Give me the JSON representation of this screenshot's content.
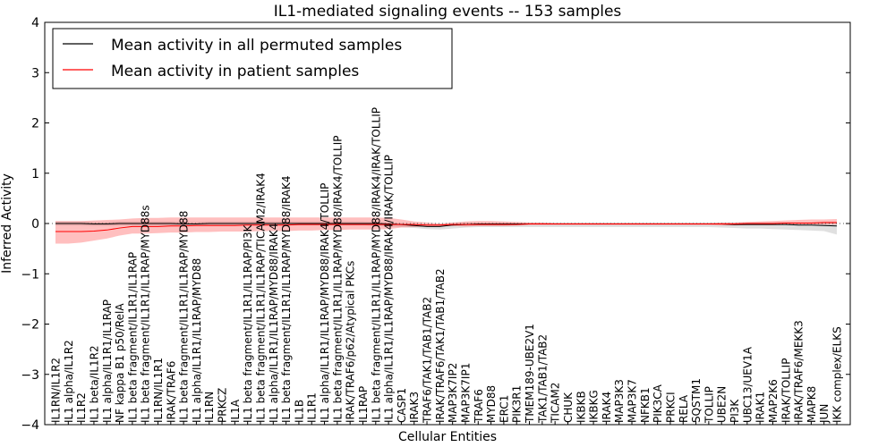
{
  "chart_data": {
    "type": "line",
    "title": "IL1-mediated signaling events -- 153 samples",
    "xlabel": "Cellular Entities",
    "ylabel": "Inferred Activity",
    "ylim": [
      -4,
      4
    ],
    "yticks": [
      "−4",
      "−3",
      "−2",
      "−1",
      "0",
      "1",
      "2",
      "3",
      "4"
    ],
    "legend": {
      "placement": "top-left",
      "entries": [
        {
          "label": "Mean activity in all permuted samples",
          "color": "#000000"
        },
        {
          "label": "Mean activity in patient samples",
          "color": "#ff0000"
        }
      ]
    },
    "categories": [
      "IL1RN/IL1R2",
      "IL1 alpha/IL1R2",
      "IL1R2",
      "IL1 beta/IL1R2",
      "IL1 alpha/IL1R1/IL1RAP",
      "NF kappa B1 p50/RelA",
      "IL1 beta fragment/IL1R1/IL1RAP",
      "IL1 beta fragment/IL1R1/IL1RAP/MYD88s",
      "IL1RN/IL1R1",
      "IRAK/TRAF6",
      "IL1 beta fragment/IL1R1/IL1RAP/MYD88",
      "IL1 alpha/IL1R1/IL1RAP/MYD88",
      "IL1RN",
      "PRKCZ",
      "IL1A",
      "IL1 beta fragment/IL1R1/IL1RAP/PI3K",
      "IL1 beta fragment/IL1R1/IL1RAP/TICAM2/IRAK4",
      "IL1 alpha/IL1R1/IL1RAP/MYD88/IRAK4",
      "IL1 beta fragment/IL1R1/IL1RAP/MYD88/IRAK4",
      "IL1B",
      "IL1R1",
      "IL1 alpha/IL1R1/IL1RAP/MYD88/IRAK4/TOLLIP",
      "IL1 beta fragment/IL1R1/IL1RAP/MYD88/IRAK4/TOLLIP",
      "IRAK/TRAF6/p62/Atypical PKCs",
      "IL1RAP",
      "IL1 beta fragment/IL1R1/IL1RAP/MYD88/IRAK4/IRAK/TOLLIP",
      "IL1 alpha/IL1R1/IL1RAP/MYD88/IRAK4/IRAK/TOLLIP",
      "CASP1",
      "IRAK3",
      "TRAF6/TAK1/TAB1/TAB2",
      "IRAK/TRAF6/TAK1/TAB1/TAB2",
      "MAP3K7IP2",
      "MAP3K7IP1",
      "TRAF6",
      "MYD88",
      "ERC1",
      "PIK3R1",
      "TMEM189-UBE2V1",
      "TAK1/TAB1/TAB2",
      "TICAM2",
      "CHUK",
      "IKBKB",
      "IKBKG",
      "IRAK4",
      "MAP3K3",
      "MAP3K7",
      "NFKB1",
      "PIK3CA",
      "PRKCI",
      "RELA",
      "SQSTM1",
      "TOLLIP",
      "UBE2N",
      "PI3K",
      "UBC13/UEV1A",
      "IRAK1",
      "MAP2K6",
      "IRAK/TOLLIP",
      "IRAK/TRAF6/MEKK3",
      "MAPK8",
      "JUN",
      "IKK complex/ELKS"
    ],
    "series": [
      {
        "name": "Mean activity in patient samples",
        "color": "#ff0000",
        "values": [
          -0.16,
          -0.16,
          -0.16,
          -0.15,
          -0.13,
          -0.09,
          -0.06,
          -0.06,
          -0.06,
          -0.05,
          -0.05,
          -0.04,
          -0.04,
          -0.04,
          -0.04,
          -0.03,
          -0.03,
          -0.03,
          -0.03,
          -0.02,
          -0.02,
          -0.02,
          -0.02,
          -0.02,
          -0.02,
          -0.02,
          -0.02,
          -0.02,
          -0.02,
          -0.03,
          -0.03,
          -0.02,
          -0.02,
          -0.02,
          -0.02,
          -0.02,
          -0.02,
          -0.01,
          -0.01,
          -0.01,
          -0.01,
          -0.01,
          -0.01,
          -0.01,
          -0.01,
          -0.01,
          -0.01,
          -0.01,
          -0.01,
          -0.01,
          -0.01,
          -0.01,
          -0.01,
          -0.01,
          0.0,
          0.0,
          0.0,
          0.01,
          0.01,
          0.01,
          0.02,
          0.02
        ],
        "lower": [
          -0.4,
          -0.4,
          -0.38,
          -0.34,
          -0.3,
          -0.24,
          -0.2,
          -0.2,
          -0.19,
          -0.18,
          -0.18,
          -0.17,
          -0.17,
          -0.16,
          -0.16,
          -0.16,
          -0.15,
          -0.15,
          -0.15,
          -0.14,
          -0.14,
          -0.13,
          -0.13,
          -0.12,
          -0.12,
          -0.12,
          -0.11,
          -0.08,
          -0.07,
          -0.06,
          -0.06,
          -0.05,
          -0.06,
          -0.05,
          -0.05,
          -0.05,
          -0.04,
          -0.03,
          -0.03,
          -0.03,
          -0.03,
          -0.03,
          -0.03,
          -0.03,
          -0.03,
          -0.03,
          -0.03,
          -0.03,
          -0.03,
          -0.03,
          -0.03,
          -0.03,
          -0.04,
          -0.04,
          -0.03,
          -0.03,
          -0.03,
          -0.02,
          -0.02,
          -0.02,
          -0.02,
          -0.02
        ],
        "upper": [
          0.05,
          0.05,
          0.05,
          0.06,
          0.07,
          0.08,
          0.1,
          0.11,
          0.11,
          0.12,
          0.12,
          0.12,
          0.12,
          0.12,
          0.12,
          0.12,
          0.12,
          0.12,
          0.12,
          0.12,
          0.12,
          0.12,
          0.12,
          0.12,
          0.12,
          0.12,
          0.11,
          0.08,
          0.04,
          0.02,
          0.0,
          0.02,
          0.04,
          0.05,
          0.05,
          0.04,
          0.03,
          0.02,
          0.02,
          0.01,
          0.01,
          0.01,
          0.01,
          0.01,
          0.01,
          0.01,
          0.01,
          0.01,
          0.01,
          0.01,
          0.01,
          0.01,
          0.02,
          0.02,
          0.03,
          0.04,
          0.05,
          0.06,
          0.07,
          0.08,
          0.08,
          0.09
        ]
      },
      {
        "name": "Mean activity in all permuted samples",
        "color": "#000000",
        "values": [
          0.0,
          0.0,
          0.0,
          -0.01,
          -0.01,
          0.0,
          0.0,
          0.0,
          0.0,
          0.0,
          -0.01,
          -0.01,
          0.0,
          0.0,
          0.0,
          0.0,
          0.0,
          0.0,
          0.0,
          0.0,
          0.0,
          0.0,
          0.0,
          0.0,
          0.0,
          0.0,
          -0.01,
          -0.02,
          -0.04,
          -0.06,
          -0.06,
          -0.03,
          -0.02,
          -0.01,
          -0.01,
          -0.01,
          -0.01,
          -0.01,
          -0.01,
          -0.01,
          -0.01,
          -0.01,
          -0.01,
          -0.01,
          -0.01,
          -0.01,
          -0.01,
          -0.01,
          -0.01,
          -0.01,
          -0.01,
          -0.01,
          -0.01,
          -0.02,
          -0.02,
          -0.02,
          -0.02,
          -0.02,
          -0.03,
          -0.03,
          -0.04,
          -0.05
        ],
        "lower": [
          -0.04,
          -0.04,
          -0.04,
          -0.05,
          -0.05,
          -0.04,
          -0.04,
          -0.04,
          -0.04,
          -0.04,
          -0.05,
          -0.05,
          -0.04,
          -0.04,
          -0.04,
          -0.04,
          -0.04,
          -0.04,
          -0.04,
          -0.04,
          -0.04,
          -0.04,
          -0.04,
          -0.04,
          -0.04,
          -0.05,
          -0.06,
          -0.07,
          -0.09,
          -0.11,
          -0.12,
          -0.1,
          -0.08,
          -0.07,
          -0.07,
          -0.07,
          -0.07,
          -0.07,
          -0.07,
          -0.07,
          -0.07,
          -0.07,
          -0.07,
          -0.07,
          -0.07,
          -0.07,
          -0.07,
          -0.07,
          -0.07,
          -0.07,
          -0.07,
          -0.07,
          -0.08,
          -0.09,
          -0.1,
          -0.1,
          -0.11,
          -0.12,
          -0.13,
          -0.14,
          -0.15,
          -0.22
        ],
        "upper": [
          0.04,
          0.04,
          0.04,
          0.03,
          0.03,
          0.04,
          0.04,
          0.04,
          0.04,
          0.04,
          0.03,
          0.03,
          0.04,
          0.04,
          0.04,
          0.04,
          0.04,
          0.04,
          0.04,
          0.04,
          0.04,
          0.04,
          0.04,
          0.04,
          0.04,
          0.03,
          0.02,
          0.01,
          0.0,
          -0.01,
          -0.01,
          0.01,
          0.02,
          0.02,
          0.02,
          0.02,
          0.02,
          0.02,
          0.02,
          0.02,
          0.02,
          0.02,
          0.02,
          0.02,
          0.02,
          0.02,
          0.02,
          0.02,
          0.02,
          0.02,
          0.02,
          0.02,
          0.02,
          0.02,
          0.02,
          0.02,
          0.02,
          0.02,
          0.02,
          0.02,
          0.03,
          0.03
        ]
      }
    ]
  }
}
